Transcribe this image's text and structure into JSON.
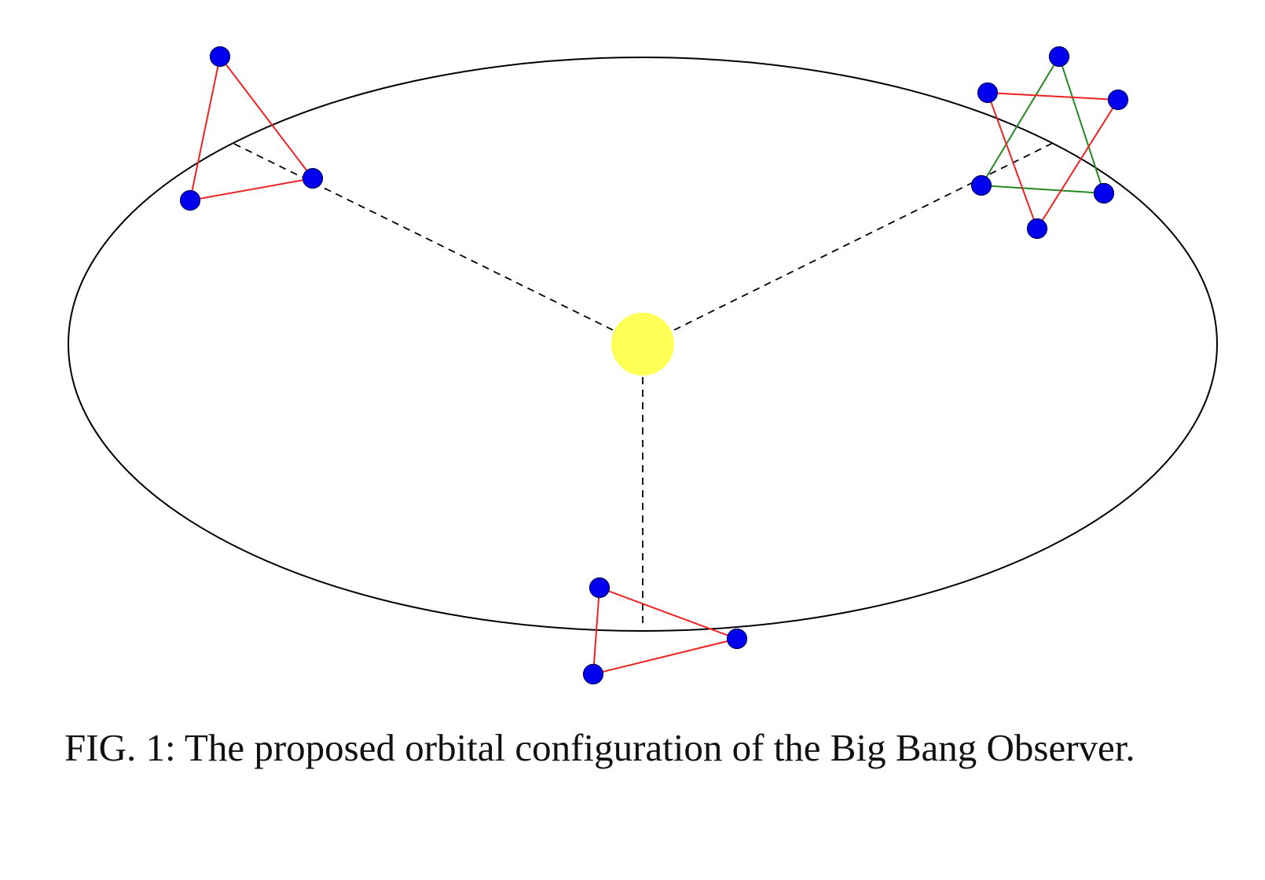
{
  "caption": "FIG. 1: The proposed orbital configuration of the Big Bang Observer.",
  "colors": {
    "orbit": "#000000",
    "sun": "#ffff55",
    "spacecraft_fill": "#0000ee",
    "spacecraft_stroke": "#000066",
    "triangle_primary": "#ee2222",
    "triangle_secondary": "#228822",
    "guide_line": "#000000"
  },
  "icons": {
    "sun": "sun-icon",
    "spacecraft": "spacecraft-icon"
  },
  "constellations": [
    {
      "name": "left-constellation",
      "triangles": [
        "red"
      ]
    },
    {
      "name": "right-constellation",
      "triangles": [
        "red",
        "green"
      ]
    },
    {
      "name": "bottom-constellation",
      "triangles": [
        "red"
      ]
    }
  ]
}
